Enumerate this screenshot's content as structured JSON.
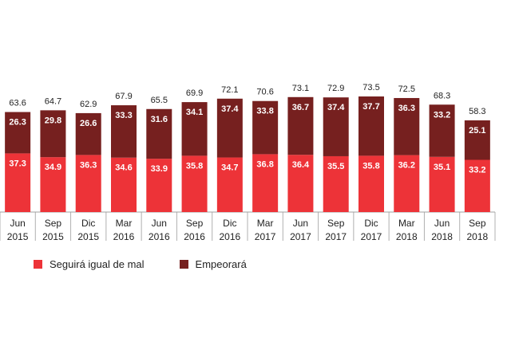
{
  "chart_data": {
    "type": "bar",
    "stacked": true,
    "categories": [
      [
        "Jun",
        "2015"
      ],
      [
        "Sep",
        "2015"
      ],
      [
        "Dic",
        "2015"
      ],
      [
        "Mar",
        "2016"
      ],
      [
        "Jun",
        "2016"
      ],
      [
        "Sep",
        "2016"
      ],
      [
        "Dic",
        "2016"
      ],
      [
        "Mar",
        "2017"
      ],
      [
        "Jun",
        "2017"
      ],
      [
        "Sep",
        "2017"
      ],
      [
        "Dic",
        "2017"
      ],
      [
        "Mar",
        "2018"
      ],
      [
        "Jun",
        "2018"
      ],
      [
        "Sep",
        "2018"
      ]
    ],
    "series": [
      {
        "name": "Seguirá igual de mal",
        "color": "#ed3338",
        "values": [
          37.3,
          34.9,
          36.3,
          34.6,
          33.9,
          35.8,
          34.7,
          36.8,
          36.4,
          35.5,
          35.8,
          36.2,
          35.1,
          33.2
        ],
        "labels": [
          "37.3",
          "34.9",
          "36.3",
          "34.6",
          "33.9",
          "35.8",
          "34.7",
          "36.8",
          "36.4",
          "35.5",
          "35.8",
          "36.2",
          "35.1",
          "33.2"
        ]
      },
      {
        "name": "Empeorará",
        "color": "#76201f",
        "values": [
          26.3,
          29.8,
          26.6,
          33.3,
          31.6,
          34.1,
          37.4,
          33.8,
          36.7,
          37.4,
          37.7,
          36.3,
          33.2,
          25.1
        ],
        "labels": [
          "26.3",
          "29.8",
          "26.6",
          "33.3",
          "31.6",
          "34.1",
          "37.4",
          "33.8",
          "36.7",
          "37.4",
          "37.7",
          "36.3",
          "33.2",
          "25.1"
        ]
      }
    ],
    "totals": [
      63.6,
      64.7,
      62.9,
      67.9,
      65.5,
      69.9,
      72.1,
      70.6,
      73.1,
      72.9,
      73.5,
      72.5,
      68.3,
      58.3
    ],
    "total_labels": [
      "63.6",
      "64.7",
      "62.9",
      "67.9",
      "65.5",
      "69.9",
      "72.1",
      "70.6",
      "73.1",
      "72.9",
      "73.5",
      "72.5",
      "68.3",
      "58.3"
    ],
    "ylim": [
      0,
      73.5
    ],
    "legend": [
      "Seguirá igual de mal",
      "Empeorará"
    ],
    "legend_position": "bottom-left",
    "grid": false
  }
}
